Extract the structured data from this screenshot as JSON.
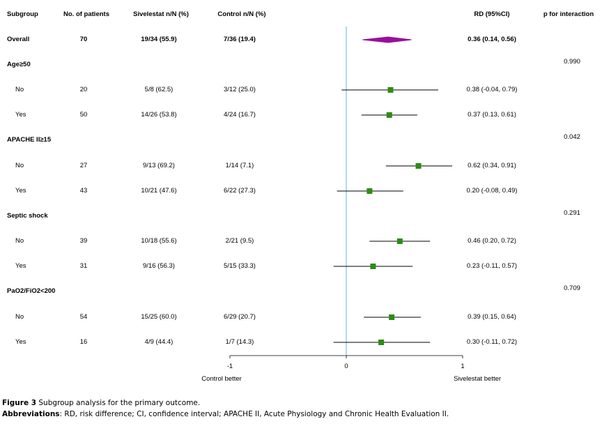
{
  "headers": {
    "subgroup": "Subgroup",
    "patients": "No. of patients",
    "sivelestat": "Sivelestat n/N (%)",
    "control": "Control n/N (%)",
    "rd": "RD (95%CI)",
    "p": "p for interaction"
  },
  "rows": [
    {
      "label": "Overall",
      "patients": "70",
      "sivelestat": "19/34 (55.9)",
      "control": "7/36 (19.4)",
      "rd_text": "0.36 (0.14, 0.56)",
      "p": "",
      "kind": "overall"
    },
    {
      "label": "Age≥50",
      "patients": "",
      "sivelestat": "",
      "control": "",
      "rd_text": "",
      "p": "0.990",
      "kind": "group"
    },
    {
      "label": "No",
      "patients": "20",
      "sivelestat": "5/8 (62.5)",
      "control": "3/12 (25.0)",
      "rd_text": "0.38 (-0.04, 0.79)",
      "p": "",
      "kind": "sub"
    },
    {
      "label": "Yes",
      "patients": "50",
      "sivelestat": "14/26 (53.8)",
      "control": "4/24 (16.7)",
      "rd_text": "0.37 (0.13, 0.61)",
      "p": "",
      "kind": "sub"
    },
    {
      "label": "APACHE II≥15",
      "patients": "",
      "sivelestat": "",
      "control": "",
      "rd_text": "",
      "p": "0.042",
      "kind": "group"
    },
    {
      "label": "No",
      "patients": "27",
      "sivelestat": "9/13 (69.2)",
      "control": "1/14 (7.1)",
      "rd_text": "0.62 (0.34, 0.91)",
      "p": "",
      "kind": "sub"
    },
    {
      "label": "Yes",
      "patients": "43",
      "sivelestat": "10/21 (47.6)",
      "control": "6/22 (27.3)",
      "rd_text": "0.20 (-0.08, 0.49)",
      "p": "",
      "kind": "sub"
    },
    {
      "label": "Septic shock",
      "patients": "",
      "sivelestat": "",
      "control": "",
      "rd_text": "",
      "p": "0.291",
      "kind": "group"
    },
    {
      "label": "No",
      "patients": "39",
      "sivelestat": "10/18 (55.6)",
      "control": "2/21 (9.5)",
      "rd_text": "0.46 (0.20, 0.72)",
      "p": "",
      "kind": "sub"
    },
    {
      "label": "Yes",
      "patients": "31",
      "sivelestat": "9/16 (56.3)",
      "control": "5/15 (33.3)",
      "rd_text": "0.23 (-0.11, 0.57)",
      "p": "",
      "kind": "sub"
    },
    {
      "label": "PaO2/FiO2<200",
      "patients": "",
      "sivelestat": "",
      "control": "",
      "rd_text": "",
      "p": "0.709",
      "kind": "group"
    },
    {
      "label": "No",
      "patients": "54",
      "sivelestat": "15/25 (60.0)",
      "control": "6/29 (20.7)",
      "rd_text": "0.39 (0.15, 0.64)",
      "p": "",
      "kind": "sub"
    },
    {
      "label": "Yes",
      "patients": "16",
      "sivelestat": "4/9 (44.4)",
      "control": "1/7 (14.3)",
      "rd_text": "0.30 (-0.11, 0.72)",
      "p": "",
      "kind": "sub"
    }
  ],
  "chart_data": {
    "type": "forest",
    "estimates": [
      {
        "row": "Overall",
        "rd": 0.36,
        "lo": 0.14,
        "hi": 0.56,
        "marker": "diamond"
      },
      {
        "row": "Age≥50 No",
        "rd": 0.38,
        "lo": -0.04,
        "hi": 0.79
      },
      {
        "row": "Age≥50 Yes",
        "rd": 0.37,
        "lo": 0.13,
        "hi": 0.61
      },
      {
        "row": "APACHE II≥15 No",
        "rd": 0.62,
        "lo": 0.34,
        "hi": 0.91
      },
      {
        "row": "APACHE II≥15 Yes",
        "rd": 0.2,
        "lo": -0.08,
        "hi": 0.49
      },
      {
        "row": "Septic shock No",
        "rd": 0.46,
        "lo": 0.2,
        "hi": 0.72
      },
      {
        "row": "Septic shock Yes",
        "rd": 0.23,
        "lo": -0.11,
        "hi": 0.57
      },
      {
        "row": "PaO2/FiO2<200 No",
        "rd": 0.39,
        "lo": 0.15,
        "hi": 0.64
      },
      {
        "row": "PaO2/FiO2<200 Yes",
        "rd": 0.3,
        "lo": -0.11,
        "hi": 0.72
      }
    ],
    "xlim": [
      -1,
      1
    ],
    "xticks": [
      "-1",
      "0",
      "1"
    ],
    "xlabel_left": "Control better",
    "xlabel_right": "Sivelestat better",
    "colors": {
      "reference_line": "#5bb8d4",
      "box": "#2e8b14",
      "diamond": "#9b0e9b",
      "ci": "#000000"
    }
  },
  "caption": {
    "fig_label": "Figure 3",
    "fig_text": " Subgroup analysis for the primary outcome.",
    "abbr_label": "Abbreviations",
    "abbr_text": ": RD, risk difference; CI, confidence interval; APACHE II, Acute Physiology and Chronic Health Evaluation II."
  }
}
